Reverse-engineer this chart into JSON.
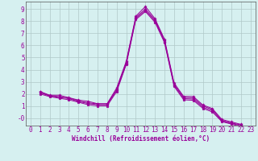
{
  "title": "",
  "xlabel": "Windchill (Refroidissement éolien,°C)",
  "ylabel": "",
  "bg_color": "#d6f0f0",
  "grid_color": "#b0c8c8",
  "line_color": "#990099",
  "marker": "*",
  "xlim": [
    -0.5,
    23.5
  ],
  "ylim": [
    -0.6,
    9.6
  ],
  "ytick_vals": [
    0,
    1,
    2,
    3,
    4,
    5,
    6,
    7,
    8,
    9
  ],
  "ytick_labels": [
    "-0",
    "1",
    "2",
    "3",
    "4",
    "5",
    "6",
    "7",
    "8",
    "9"
  ],
  "xticks": [
    0,
    1,
    2,
    3,
    4,
    5,
    6,
    7,
    8,
    9,
    10,
    11,
    12,
    13,
    14,
    15,
    16,
    17,
    18,
    19,
    20,
    21,
    22,
    23
  ],
  "series": [
    [
      2.2,
      1.9,
      1.9,
      1.7,
      1.5,
      1.4,
      1.2,
      1.2,
      2.5,
      4.7,
      8.4,
      9.2,
      8.2,
      6.5,
      2.9,
      1.8,
      1.8,
      1.1,
      0.8,
      -0.1,
      -0.3,
      -0.5
    ],
    [
      2.15,
      1.87,
      1.78,
      1.67,
      1.43,
      1.28,
      1.18,
      1.18,
      2.38,
      4.6,
      8.3,
      9.0,
      8.1,
      6.4,
      2.8,
      1.72,
      1.68,
      1.02,
      0.72,
      -0.18,
      -0.38,
      -0.55
    ],
    [
      2.1,
      1.83,
      1.72,
      1.62,
      1.38,
      1.22,
      1.12,
      1.12,
      2.3,
      4.52,
      8.22,
      8.88,
      8.0,
      6.32,
      2.72,
      1.62,
      1.58,
      0.92,
      0.62,
      -0.22,
      -0.42,
      -0.62
    ],
    [
      2.0,
      1.78,
      1.65,
      1.52,
      1.32,
      1.12,
      1.02,
      1.02,
      2.2,
      4.42,
      8.12,
      8.78,
      7.9,
      6.22,
      2.62,
      1.52,
      1.48,
      0.82,
      0.52,
      -0.28,
      -0.48,
      -0.7
    ]
  ],
  "x_start": 1,
  "xlabel_fontsize": 5.5,
  "tick_fontsize": 5.5
}
